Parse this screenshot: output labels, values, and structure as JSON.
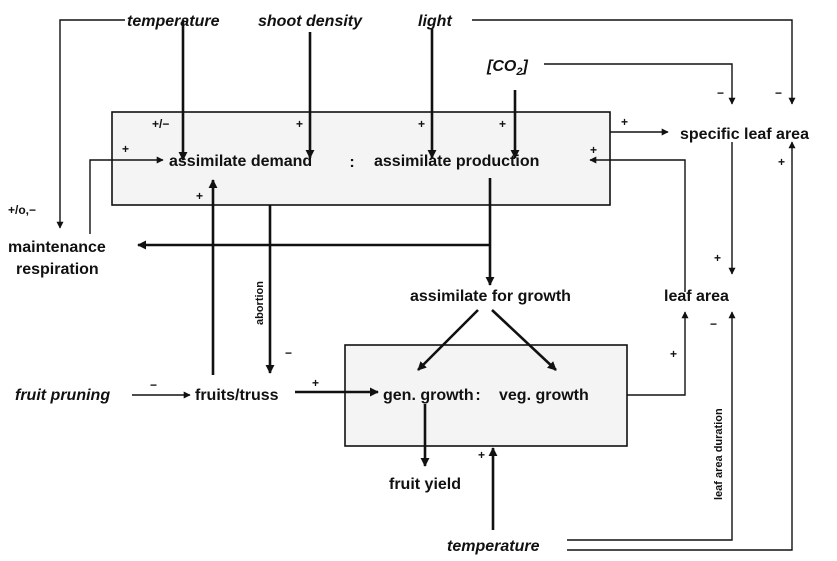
{
  "labels": {
    "temperature_top": "temperature",
    "shoot_density": "shoot density",
    "light": "light",
    "co2": "[CO",
    "co2_sub": "2",
    "co2_close": "]",
    "assimilate_demand": "assimilate demand",
    "ratio_colon_top": ":",
    "assimilate_production": "assimilate production",
    "specific_leaf_area": "specific leaf area",
    "maintenance": "maintenance",
    "respiration": "respiration",
    "assimilate_for_growth": "assimilate for growth",
    "leaf_area": "leaf area",
    "abortion": "abortion",
    "fruit_pruning": "fruit pruning",
    "fruits_truss": "fruits/truss",
    "gen_growth": "gen. growth",
    "ratio_colon_bottom": ":",
    "veg_growth": "veg. growth",
    "leaf_area_duration": "leaf area duration",
    "fruit_yield": "fruit yield",
    "temperature_bottom": "temperature"
  },
  "signs": {
    "temp_demand": "+/−",
    "shoot_demand": "+",
    "light_production": "+",
    "co2_production": "+",
    "production_sla": "+",
    "leafarea_production": "+",
    "co2_sla": "−",
    "light_sla": "−",
    "resp_demand": "+",
    "temp_resp": "+/o,−",
    "fruits_demand": "+",
    "abortion_fruits": "−",
    "pruning_fruits": "−",
    "fruits_gen": "+",
    "sla_leafarea": "+",
    "veg_leafarea": "+",
    "duration_leafarea": "−",
    "temp_sla": "+",
    "temp_growth": "+"
  }
}
